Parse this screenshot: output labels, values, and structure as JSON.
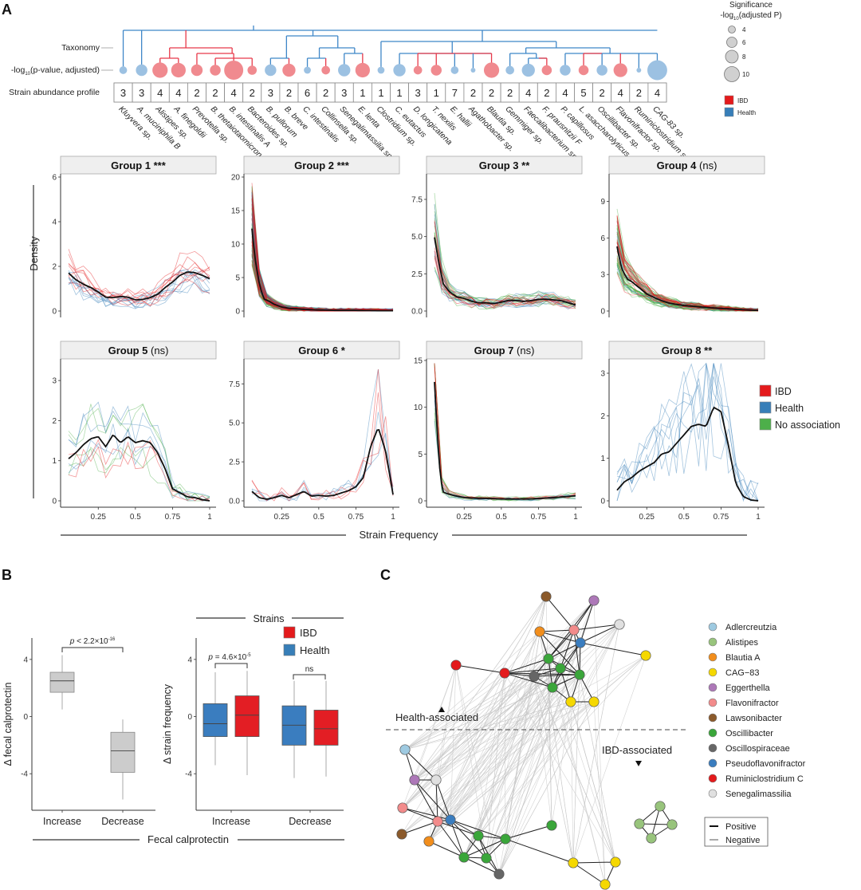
{
  "panels": {
    "a": "A",
    "b": "B",
    "c": "C"
  },
  "panel_a": {
    "row_labels": {
      "taxonomy": "Taxonomy",
      "pvalue_prefix": "-log",
      "pvalue_sub": "10",
      "pvalue_suffix": "(p-value, adjusted)",
      "abundance": "Strain abundance profile"
    },
    "significance_legend": {
      "title_line1": "Significance",
      "title_line2_prefix": "-log",
      "title_line2_sub": "10",
      "title_line2_suffix": "(adjusted P)",
      "values": [
        "4",
        "6",
        "8",
        "10"
      ]
    },
    "association_legend": [
      {
        "label": "IBD",
        "color": "#e41a1c"
      },
      {
        "label": "Health",
        "color": "#377eb8"
      }
    ],
    "strains": [
      {
        "name": "Kluyvera sp.",
        "profile": "3",
        "assoc": "Health",
        "sig": 3
      },
      {
        "name": "A. muciniphila B",
        "profile": "3",
        "assoc": "Health",
        "sig": 5.5
      },
      {
        "name": "Alistipes sp.",
        "profile": "4",
        "assoc": "IBD",
        "sig": 8
      },
      {
        "name": "A. finegoldii",
        "profile": "4",
        "assoc": "IBD",
        "sig": 7.5
      },
      {
        "name": "Prevotella sp.",
        "profile": "2",
        "assoc": "IBD",
        "sig": 5.5
      },
      {
        "name": "B. thetaiotaomicron",
        "profile": "2",
        "assoc": "IBD",
        "sig": 5
      },
      {
        "name": "B. intestinalis A",
        "profile": "4",
        "assoc": "IBD",
        "sig": 10.5
      },
      {
        "name": "Bacteroides sp.",
        "profile": "2",
        "assoc": "IBD",
        "sig": 4
      },
      {
        "name": "B. pullorum",
        "profile": "3",
        "assoc": "Health",
        "sig": 5.5
      },
      {
        "name": "B. breve",
        "profile": "2",
        "assoc": "IBD",
        "sig": 6.5
      },
      {
        "name": "C. intestinalis",
        "profile": "6",
        "assoc": "Health",
        "sig": 2.5
      },
      {
        "name": "Collinsella sp.",
        "profile": "2",
        "assoc": "IBD",
        "sig": 3.5
      },
      {
        "name": "Senegalimassilia sp.",
        "profile": "3",
        "assoc": "Health",
        "sig": 6
      },
      {
        "name": "E. lenta",
        "profile": "1",
        "assoc": "IBD",
        "sig": 7.5
      },
      {
        "name": "Clostridium sp.",
        "profile": "1",
        "assoc": "Health",
        "sig": 2.5
      },
      {
        "name": "C. eutactus",
        "profile": "1",
        "assoc": "Health",
        "sig": 6
      },
      {
        "name": "D. longicatena",
        "profile": "3",
        "assoc": "IBD",
        "sig": 3.5
      },
      {
        "name": "T. nexilis",
        "profile": "1",
        "assoc": "IBD",
        "sig": 5
      },
      {
        "name": "E. hallii",
        "profile": "7",
        "assoc": "Health",
        "sig": 3
      },
      {
        "name": "Agathobacter sp.",
        "profile": "2",
        "assoc": "Health",
        "sig": 1
      },
      {
        "name": "Blautia sp.",
        "profile": "2",
        "assoc": "IBD",
        "sig": 8
      },
      {
        "name": "Gemmiger sp.",
        "profile": "2",
        "assoc": "Health",
        "sig": 3.5
      },
      {
        "name": "Faecalibacterium sp.",
        "profile": "4",
        "assoc": "Health",
        "sig": 6.5
      },
      {
        "name": "F. prausnitzii F",
        "profile": "2",
        "assoc": "IBD",
        "sig": 4.5
      },
      {
        "name": "P. capillosus",
        "profile": "4",
        "assoc": "Health",
        "sig": 5
      },
      {
        "name": "L. asaccharolyticus",
        "profile": "5",
        "assoc": "IBD",
        "sig": 4.5
      },
      {
        "name": "Oscillibacter sp.",
        "profile": "2",
        "assoc": "Health",
        "sig": 5
      },
      {
        "name": "Flavonifractor sp.",
        "profile": "4",
        "assoc": "IBD",
        "sig": 7
      },
      {
        "name": "Ruminiclostridium sp.",
        "profile": "2",
        "assoc": "Health",
        "sig": 1
      },
      {
        "name": "CAG-83 sp.",
        "profile": "4",
        "assoc": "Health",
        "sig": 11
      }
    ]
  },
  "density_panel": {
    "y_label": "Density",
    "x_label": "Strain Frequency",
    "legend": [
      {
        "label": "IBD",
        "color": "#e41a1c"
      },
      {
        "label": "Health",
        "color": "#377eb8"
      },
      {
        "label": "No association",
        "color": "#4daf4a"
      }
    ]
  },
  "box_panel": {
    "left": {
      "y_label": "Δ fecal calprotectin",
      "pvalue": "p < 2.2×10⁻¹⁶",
      "pvalue_p": "p",
      "pvalue_rest": " < 2.2×10",
      "pvalue_exp": "-16"
    },
    "right": {
      "header": "Strains",
      "y_label": "Δ strain frequency",
      "pvalue_p": "p",
      "pvalue_rest": " = 4.6×10",
      "pvalue_exp": "-5",
      "ns_label": "ns",
      "legend": [
        {
          "label": "IBD",
          "color": "#e41a1c"
        },
        {
          "label": "Health",
          "color": "#377eb8"
        }
      ]
    },
    "x_group_label": "Fecal calprotectin"
  },
  "network_panel": {
    "health_label": "Health-associated",
    "ibd_label": "IBD-associated",
    "genus_legend": [
      {
        "label": "Adlercreutzia",
        "color": "#9ecae1"
      },
      {
        "label": "Alistipes",
        "color": "#98c47c"
      },
      {
        "label": "Blautia A",
        "color": "#f28e1c"
      },
      {
        "label": "CAG−83",
        "color": "#f5d800"
      },
      {
        "label": "Eggerthella",
        "color": "#ad78b8"
      },
      {
        "label": "Flavonifractor",
        "color": "#f28b8b"
      },
      {
        "label": "Lawsonibacter",
        "color": "#8b5a2b"
      },
      {
        "label": "Oscillibacter",
        "color": "#3aa63a"
      },
      {
        "label": "Oscillospiraceae",
        "color": "#666666"
      },
      {
        "label": "Pseudoflavonifractor",
        "color": "#3a7dbf"
      },
      {
        "label": "Ruminiclostridium C",
        "color": "#e31a1c"
      },
      {
        "label": "Senegalimassilia",
        "color": "#e0e0e0"
      }
    ],
    "edge_legend": [
      {
        "label": "Positive",
        "color": "#111111"
      },
      {
        "label": "Negative",
        "color": "#aaaaaa"
      }
    ]
  },
  "chart_data": [
    {
      "type": "line",
      "title": "Strain frequency density profiles",
      "xlabel": "Strain Frequency",
      "ylabel": "Density",
      "x_ticks": [
        "0.25",
        "0.5",
        "0.75",
        "1"
      ],
      "xlim": [
        0.05,
        1
      ],
      "legend": [
        "IBD",
        "Health",
        "No association"
      ],
      "legend_position": "right",
      "facets": [
        {
          "title": "Group 1",
          "sig": "***",
          "sig_bold": true,
          "ylim": [
            0,
            6
          ],
          "y_ticks": [
            "0",
            "2",
            "4",
            "6"
          ],
          "mean_curve": {
            "x": [
              0.05,
              0.1,
              0.15,
              0.2,
              0.25,
              0.3,
              0.35,
              0.4,
              0.45,
              0.5,
              0.55,
              0.6,
              0.65,
              0.7,
              0.75,
              0.8,
              0.85,
              0.9,
              0.95,
              1.0
            ],
            "y": [
              1.7,
              1.4,
              1.2,
              1.05,
              0.85,
              0.62,
              0.6,
              0.65,
              0.62,
              0.5,
              0.52,
              0.6,
              0.75,
              1.05,
              1.3,
              1.6,
              1.75,
              1.72,
              1.6,
              1.45
            ]
          }
        },
        {
          "title": "Group 2",
          "sig": "***",
          "sig_bold": true,
          "ylim": [
            0,
            20
          ],
          "y_ticks": [
            "0",
            "5",
            "10",
            "15",
            "20"
          ],
          "mean_curve": {
            "x": [
              0.05,
              0.07,
              0.1,
              0.13,
              0.17,
              0.2,
              0.25,
              0.3,
              0.4,
              0.5,
              0.6,
              0.7,
              0.8,
              0.9,
              1.0
            ],
            "y": [
              12.3,
              8,
              4,
              1.8,
              1.4,
              1.0,
              0.6,
              0.4,
              0.25,
              0.15,
              0.1,
              0.1,
              0.08,
              0.05,
              0.05
            ]
          }
        },
        {
          "title": "Group 3",
          "sig": "**",
          "sig_bold": true,
          "ylim": [
            0,
            9
          ],
          "y_ticks": [
            "0.0",
            "2.5",
            "5.0",
            "7.5"
          ],
          "mean_curve": {
            "x": [
              0.05,
              0.08,
              0.11,
              0.15,
              0.2,
              0.25,
              0.3,
              0.35,
              0.4,
              0.45,
              0.5,
              0.55,
              0.6,
              0.65,
              0.7,
              0.75,
              0.8,
              0.85,
              0.9,
              0.95,
              1.0
            ],
            "y": [
              4.95,
              3.2,
              1.8,
              1.3,
              0.95,
              0.85,
              0.65,
              0.55,
              0.55,
              0.5,
              0.6,
              0.72,
              0.7,
              0.65,
              0.7,
              0.78,
              0.8,
              0.75,
              0.7,
              0.55,
              0.42
            ]
          }
        },
        {
          "title": "Group 4",
          "sig": "(ns)",
          "sig_bold": false,
          "ylim": [
            0,
            11
          ],
          "y_ticks": [
            "0",
            "3",
            "6",
            "9"
          ],
          "mean_curve": {
            "x": [
              0.05,
              0.08,
              0.12,
              0.15,
              0.2,
              0.25,
              0.3,
              0.35,
              0.4,
              0.5,
              0.6,
              0.7,
              0.8,
              0.9,
              1.0
            ],
            "y": [
              5.3,
              3.5,
              2.6,
              2.4,
              1.9,
              1.4,
              1.1,
              0.85,
              0.65,
              0.45,
              0.35,
              0.25,
              0.18,
              0.1,
              0.05
            ]
          }
        },
        {
          "title": "Group 5",
          "sig": "(ns)",
          "sig_bold": false,
          "ylim": [
            0,
            3.5
          ],
          "y_ticks": [
            "0",
            "1",
            "2",
            "3"
          ],
          "mean_curve": {
            "x": [
              0.05,
              0.1,
              0.15,
              0.2,
              0.25,
              0.3,
              0.35,
              0.4,
              0.45,
              0.5,
              0.55,
              0.6,
              0.65,
              0.7,
              0.75,
              0.8,
              0.85,
              0.9,
              0.95,
              1.0
            ],
            "y": [
              1.05,
              1.2,
              1.4,
              1.55,
              1.6,
              1.35,
              1.65,
              1.45,
              1.6,
              1.45,
              1.5,
              1.45,
              1.2,
              0.8,
              0.3,
              0.2,
              0.1,
              0.08,
              0.03,
              0
            ]
          }
        },
        {
          "title": "Group 6",
          "sig": "*",
          "sig_bold": true,
          "ylim": [
            0,
            9
          ],
          "y_ticks": [
            "0.0",
            "2.5",
            "5.0",
            "7.5"
          ],
          "mean_curve": {
            "x": [
              0.05,
              0.1,
              0.15,
              0.2,
              0.25,
              0.3,
              0.35,
              0.4,
              0.45,
              0.5,
              0.55,
              0.6,
              0.65,
              0.7,
              0.75,
              0.8,
              0.85,
              0.9,
              0.95,
              1.0
            ],
            "y": [
              0.6,
              0.2,
              0.1,
              0.2,
              0.35,
              0.2,
              0.4,
              0.6,
              0.3,
              0.35,
              0.3,
              0.35,
              0.5,
              0.65,
              0.9,
              1.5,
              3.5,
              4.7,
              3.2,
              0.4
            ]
          }
        },
        {
          "title": "Group 7",
          "sig": "(ns)",
          "sig_bold": false,
          "ylim": [
            0,
            15
          ],
          "y_ticks": [
            "0",
            "5",
            "10",
            "15"
          ],
          "mean_curve": {
            "x": [
              0.05,
              0.07,
              0.09,
              0.11,
              0.15,
              0.2,
              0.25,
              0.3,
              0.4,
              0.5,
              0.6,
              0.7,
              0.8,
              0.9,
              1.0
            ],
            "y": [
              12.7,
              7,
              2.5,
              0.9,
              0.7,
              0.5,
              0.35,
              0.3,
              0.25,
              0.2,
              0.2,
              0.2,
              0.3,
              0.4,
              0.55
            ]
          }
        },
        {
          "title": "Group 8",
          "sig": "**",
          "sig_bold": true,
          "ylim": [
            0,
            3.3
          ],
          "y_ticks": [
            "0",
            "1",
            "2",
            "3"
          ],
          "mean_curve": {
            "x": [
              0.05,
              0.1,
              0.15,
              0.2,
              0.25,
              0.3,
              0.35,
              0.4,
              0.45,
              0.5,
              0.55,
              0.6,
              0.65,
              0.7,
              0.75,
              0.8,
              0.85,
              0.9,
              0.95,
              1.0
            ],
            "y": [
              0.25,
              0.45,
              0.55,
              0.7,
              0.8,
              0.9,
              1.1,
              1.15,
              1.35,
              1.55,
              1.75,
              1.8,
              1.75,
              2.2,
              2.1,
              1.3,
              0.4,
              0.1,
              0.02,
              0
            ]
          }
        }
      ]
    },
    {
      "type": "box",
      "title": "",
      "ylabel": "Δ fecal calprotectin",
      "xlabel": "Fecal calprotectin",
      "categories": [
        "Increase",
        "Decrease"
      ],
      "ylim": [
        -6.5,
        5.5
      ],
      "y_ticks": [
        "-4",
        "0",
        "4"
      ],
      "boxes": [
        {
          "category": "Increase",
          "min": 0.5,
          "q1": 1.7,
          "median": 2.5,
          "q3": 3.1,
          "max": 4.3,
          "color": "#cccccc"
        },
        {
          "category": "Decrease",
          "min": -5.8,
          "q1": -3.9,
          "median": -2.4,
          "q3": -1.1,
          "max": -0.2,
          "color": "#cccccc"
        }
      ],
      "annotation": "p < 2.2×10^-16"
    },
    {
      "type": "box",
      "title": "Strains",
      "ylabel": "Δ strain frequency",
      "categories": [
        "Increase",
        "Decrease"
      ],
      "ylim": [
        -6.5,
        5.5
      ],
      "y_ticks": [
        "-4",
        "0",
        "4"
      ],
      "series": [
        {
          "name": "Health",
          "color": "#3a7dbf",
          "boxes": [
            {
              "category": "Increase",
              "min": -3.4,
              "q1": -1.4,
              "median": -0.5,
              "q3": 0.9,
              "max": 3.1
            },
            {
              "category": "Decrease",
              "min": -4.3,
              "q1": -2.0,
              "median": -0.6,
              "q3": 0.75,
              "max": 2.5
            }
          ]
        },
        {
          "name": "IBD",
          "color": "#e31e24",
          "boxes": [
            {
              "category": "Increase",
              "min": -4.1,
              "q1": -1.4,
              "median": 0.1,
              "q3": 1.45,
              "max": 3.2
            },
            {
              "category": "Decrease",
              "min": -4.2,
              "q1": -2.0,
              "median": -0.85,
              "q3": 0.45,
              "max": 2.5
            }
          ]
        }
      ],
      "annotations": [
        "p = 4.6×10^-5",
        "ns"
      ],
      "legend": [
        "IBD",
        "Health"
      ],
      "legend_position": "top-right"
    }
  ]
}
